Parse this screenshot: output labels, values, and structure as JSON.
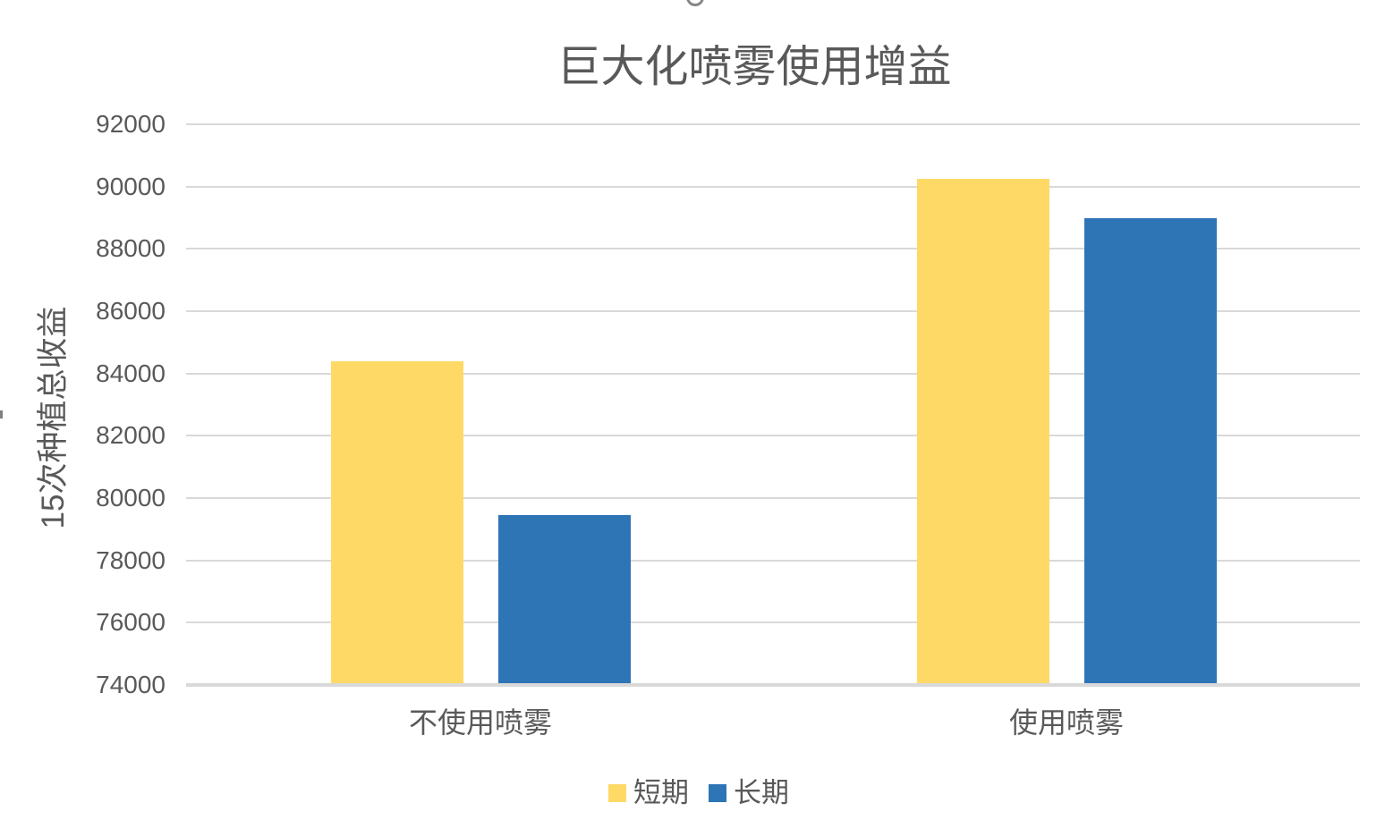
{
  "chart_data": {
    "type": "bar",
    "title": "巨大化喷雾使用增益",
    "ylabel": "15次种植总收益",
    "xlabel": "",
    "categories": [
      "不使用喷雾",
      "使用喷雾"
    ],
    "series": [
      {
        "name": "短期",
        "color": "#FFD966",
        "values": [
          84400,
          90250
        ]
      },
      {
        "name": "长期",
        "color": "#2E75B6",
        "values": [
          79450,
          89000
        ]
      }
    ],
    "ylim": [
      74000,
      92000
    ],
    "ytick_step": 2000,
    "yticks": [
      74000,
      76000,
      78000,
      80000,
      82000,
      84000,
      86000,
      88000,
      90000,
      92000
    ],
    "grid": true,
    "legend_position": "bottom",
    "colors": {
      "text": "#595959",
      "gridline": "#D9D9D9",
      "axis_line": "#D9D9D9",
      "background": "#FFFFFF"
    }
  }
}
